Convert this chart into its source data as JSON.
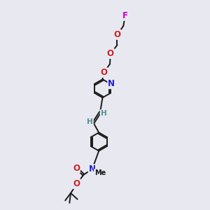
{
  "bg_color": "#e8e8f0",
  "bond_color": "#1a1a1a",
  "bond_width": 1.4,
  "atom_colors": {
    "N": "#2222cc",
    "O": "#cc2222",
    "F": "#cc00cc",
    "H": "#509090",
    "C": "#1a1a1a"
  },
  "font_size": 8.5,
  "fig_size": [
    3.0,
    3.0
  ],
  "dpi": 100,
  "xlim": [
    -1.5,
    5.5
  ],
  "ylim": [
    -1.0,
    16.0
  ]
}
